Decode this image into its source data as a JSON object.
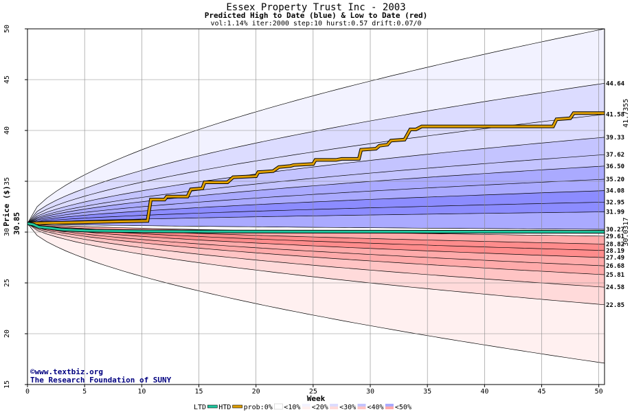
{
  "chart_data": {
    "type": "area",
    "title": "Essex Property Trust Inc - 2003",
    "subtitle": "Predicted High to Date (blue) &  Low to Date (red)",
    "params": "vol:1.14% iter:2000 step:10 hurst:0.57 drift:0.07/0",
    "xlabel": "Week",
    "ylabel": "Price ($)",
    "xlim": [
      0,
      50.5
    ],
    "ylim": [
      15,
      50
    ],
    "x_ticks": [
      0,
      5,
      10,
      15,
      20,
      25,
      30,
      35,
      40,
      45,
      50
    ],
    "y_ticks": [
      15,
      20,
      25,
      30,
      35,
      40,
      45,
      50
    ],
    "grid": true,
    "start_price": 30.85,
    "start_label": "30.85",
    "upper_bands": [
      {
        "end": 50.0,
        "label": ""
      },
      {
        "end": 44.64,
        "label": "44.64"
      },
      {
        "end": 41.58,
        "label": "41.58"
      },
      {
        "end": 39.33,
        "label": "39.33"
      },
      {
        "end": 37.62,
        "label": "37.62"
      },
      {
        "end": 36.5,
        "label": "36.50"
      },
      {
        "end": 35.2,
        "label": "35.20"
      },
      {
        "end": 34.08,
        "label": "34.08"
      },
      {
        "end": 32.95,
        "label": "32.95"
      },
      {
        "end": 31.99,
        "label": "31.99"
      },
      {
        "end": 30.27,
        "label": "30.27"
      }
    ],
    "lower_bands": [
      {
        "end": 29.61,
        "label": "29.61"
      },
      {
        "end": 28.82,
        "label": "28.82"
      },
      {
        "end": 28.19,
        "label": "28.19"
      },
      {
        "end": 27.49,
        "label": "27.49"
      },
      {
        "end": 26.68,
        "label": "26.68"
      },
      {
        "end": 25.81,
        "label": "25.81"
      },
      {
        "end": 24.58,
        "label": "24.58"
      },
      {
        "end": 22.85,
        "label": "22.85"
      },
      {
        "end": 17.1,
        "label": ""
      }
    ],
    "htd_series": {
      "name": "HTD",
      "final_label": "41.7355",
      "points": [
        [
          0,
          30.85
        ],
        [
          10.5,
          31.1
        ],
        [
          10.8,
          33.2
        ],
        [
          12,
          33.2
        ],
        [
          12.2,
          33.5
        ],
        [
          14,
          33.5
        ],
        [
          14.3,
          34.2
        ],
        [
          15.3,
          34.3
        ],
        [
          15.5,
          34.9
        ],
        [
          17.5,
          34.9
        ],
        [
          18,
          35.4
        ],
        [
          20,
          35.5
        ],
        [
          20.2,
          35.9
        ],
        [
          21.5,
          36
        ],
        [
          22,
          36.4
        ],
        [
          23,
          36.5
        ],
        [
          23.3,
          36.6
        ],
        [
          25,
          36.7
        ],
        [
          25.2,
          37.1
        ],
        [
          27,
          37.1
        ],
        [
          27.5,
          37.2
        ],
        [
          29,
          37.2
        ],
        [
          29.2,
          38.1
        ],
        [
          30.5,
          38.2
        ],
        [
          30.8,
          38.5
        ],
        [
          31.5,
          38.6
        ],
        [
          31.8,
          39
        ],
        [
          33,
          39.1
        ],
        [
          33.5,
          40.1
        ],
        [
          34,
          40.1
        ],
        [
          34.5,
          40.4
        ],
        [
          46,
          40.4
        ],
        [
          46.3,
          41.1
        ],
        [
          47.5,
          41.2
        ],
        [
          47.8,
          41.7
        ],
        [
          50.5,
          41.7
        ]
      ]
    },
    "ltd_series": {
      "name": "LTD",
      "final_label": "30.0317",
      "points": [
        [
          0,
          30.85
        ],
        [
          0.5,
          30.75
        ],
        [
          1,
          30.5
        ],
        [
          2,
          30.4
        ],
        [
          3,
          30.25
        ],
        [
          4,
          30.2
        ],
        [
          5,
          30.15
        ],
        [
          8,
          30.1
        ],
        [
          10,
          30.08
        ],
        [
          15,
          30.06
        ],
        [
          20,
          30.05
        ],
        [
          30,
          30.04
        ],
        [
          40,
          30.035
        ],
        [
          50.5,
          30.03
        ]
      ]
    },
    "legend": {
      "items": [
        "LTD",
        "HTD",
        "prob:0%",
        "<10%",
        "<20%",
        "<30%",
        "<40%",
        "<50%"
      ],
      "colors": {
        "ltd": "#20c8a0",
        "htd": "#e0a000",
        "prob0": "#ffffff",
        "p10": [
          "#f2f2ff",
          "#fff0f0"
        ],
        "p20": [
          "#dcdcff",
          "#ffdada"
        ],
        "p30": [
          "#c4c4ff",
          "#ffc4c4"
        ],
        "p40": [
          "#aaaaff",
          "#ffaaaa"
        ],
        "p50": [
          "#8c8cff",
          "#ff8c8c"
        ]
      },
      "placement": "bottom"
    },
    "colors": {
      "upper_fills": [
        "#f2f2ff",
        "#dcdcff",
        "#dcdcff",
        "#c4c4ff",
        "#c4c4ff",
        "#aaaaff",
        "#aaaaff",
        "#8c8cff",
        "#8c8cff",
        "#aaaaff"
      ],
      "lower_fills": [
        "#ffaaaa",
        "#ff8c8c",
        "#ff8c8c",
        "#ffaaaa",
        "#ffaaaa",
        "#ffc4c4",
        "#ffdada",
        "#fff0f0"
      ],
      "htd_label": "#a06000",
      "ltd_label": "#008060"
    }
  },
  "credits": {
    "site": "©www.textbiz.org",
    "org": "The Research Foundation of SUNY"
  }
}
